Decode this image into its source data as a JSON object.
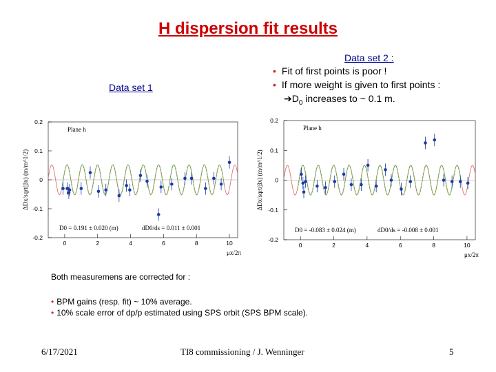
{
  "slide": {
    "title": "H dispersion fit results",
    "data_set_1": "Data set 1",
    "data_set_2": "Data set 2 :",
    "bullets": [
      "Fit of first points is poor !",
      "If more weight is given to first points :"
    ],
    "sub_bullet": {
      "arrow": "➔",
      "d": "D",
      "sub": "0",
      "text": " increases to ~ 0.1 m."
    },
    "note": "Both measuremens are corrected for :",
    "note_bullets": [
      "BPM gains (resp. fit) ~ 10% average.",
      "10% scale error of dp/p estimated using SPS orbit (SPS BPM scale)."
    ],
    "footer": {
      "date": "6/17/2021",
      "center": "TI8 commissioning / J. Wenninger",
      "page": "5"
    }
  },
  "chart_data": [
    {
      "type": "scatter",
      "title": "Plane h",
      "xlabel": "μx/2π",
      "ylabel": "ΔDx/sqrt(βx) (m/m^1/2)",
      "xlim": [
        -1,
        10.5
      ],
      "ylim": [
        -0.2,
        0.2
      ],
      "xticks": [
        "0",
        "2",
        "4",
        "6",
        "8",
        "10"
      ],
      "yticks": [
        "0.2",
        "0.1",
        "0",
        "-0.1",
        "-0.2"
      ],
      "fit_text": "D0 = 0.191 ± 0.020 (m)",
      "slope_text": "dD0/ds = 0.011 ± 0.001",
      "points": [
        [
          -0.1,
          -0.03
        ],
        [
          0.15,
          -0.03
        ],
        [
          0.25,
          -0.045
        ],
        [
          0.3,
          -0.035
        ],
        [
          1.0,
          -0.03
        ],
        [
          1.55,
          0.025
        ],
        [
          2.05,
          -0.04
        ],
        [
          2.5,
          -0.035
        ],
        [
          3.3,
          -0.055
        ],
        [
          3.75,
          -0.02
        ],
        [
          3.95,
          -0.035
        ],
        [
          4.6,
          0.015
        ],
        [
          5.0,
          -0.005
        ],
        [
          5.7,
          -0.12
        ],
        [
          5.85,
          -0.025
        ],
        [
          6.5,
          -0.015
        ],
        [
          7.3,
          0.005
        ],
        [
          7.7,
          0.005
        ],
        [
          8.55,
          -0.03
        ],
        [
          9.05,
          0.005
        ],
        [
          9.5,
          -0.015
        ],
        [
          10.0,
          0.06
        ]
      ]
    },
    {
      "type": "scatter",
      "title": "Plane h",
      "xlabel": "μx/2π",
      "ylabel": "ΔDx/sqrt(βx) (m/m^1/2)",
      "xlim": [
        -1,
        10.5
      ],
      "ylim": [
        -0.2,
        0.2
      ],
      "xticks": [
        "0",
        "2",
        "4",
        "6",
        "8",
        "10"
      ],
      "yticks": [
        "0.2",
        "0.1",
        "0",
        "-0.1",
        "-0.2"
      ],
      "fit_text": "D0 = -0.083 ± 0.024 (m)",
      "slope_text": "dD0/ds = -0.008 ± 0.001",
      "points": [
        [
          0.05,
          0.02
        ],
        [
          0.15,
          -0.01
        ],
        [
          0.2,
          -0.04
        ],
        [
          0.3,
          -0.005
        ],
        [
          1.0,
          -0.02
        ],
        [
          1.5,
          -0.025
        ],
        [
          2.05,
          -0.005
        ],
        [
          2.6,
          0.02
        ],
        [
          3.05,
          -0.015
        ],
        [
          3.65,
          -0.015
        ],
        [
          4.05,
          0.05
        ],
        [
          4.55,
          -0.02
        ],
        [
          5.1,
          0.035
        ],
        [
          5.45,
          0.0
        ],
        [
          6.05,
          -0.03
        ],
        [
          6.6,
          -0.005
        ],
        [
          7.5,
          0.125
        ],
        [
          8.05,
          0.135
        ],
        [
          8.6,
          0.0
        ],
        [
          9.1,
          -0.005
        ],
        [
          9.6,
          -0.005
        ],
        [
          10.05,
          -0.01
        ]
      ]
    }
  ]
}
